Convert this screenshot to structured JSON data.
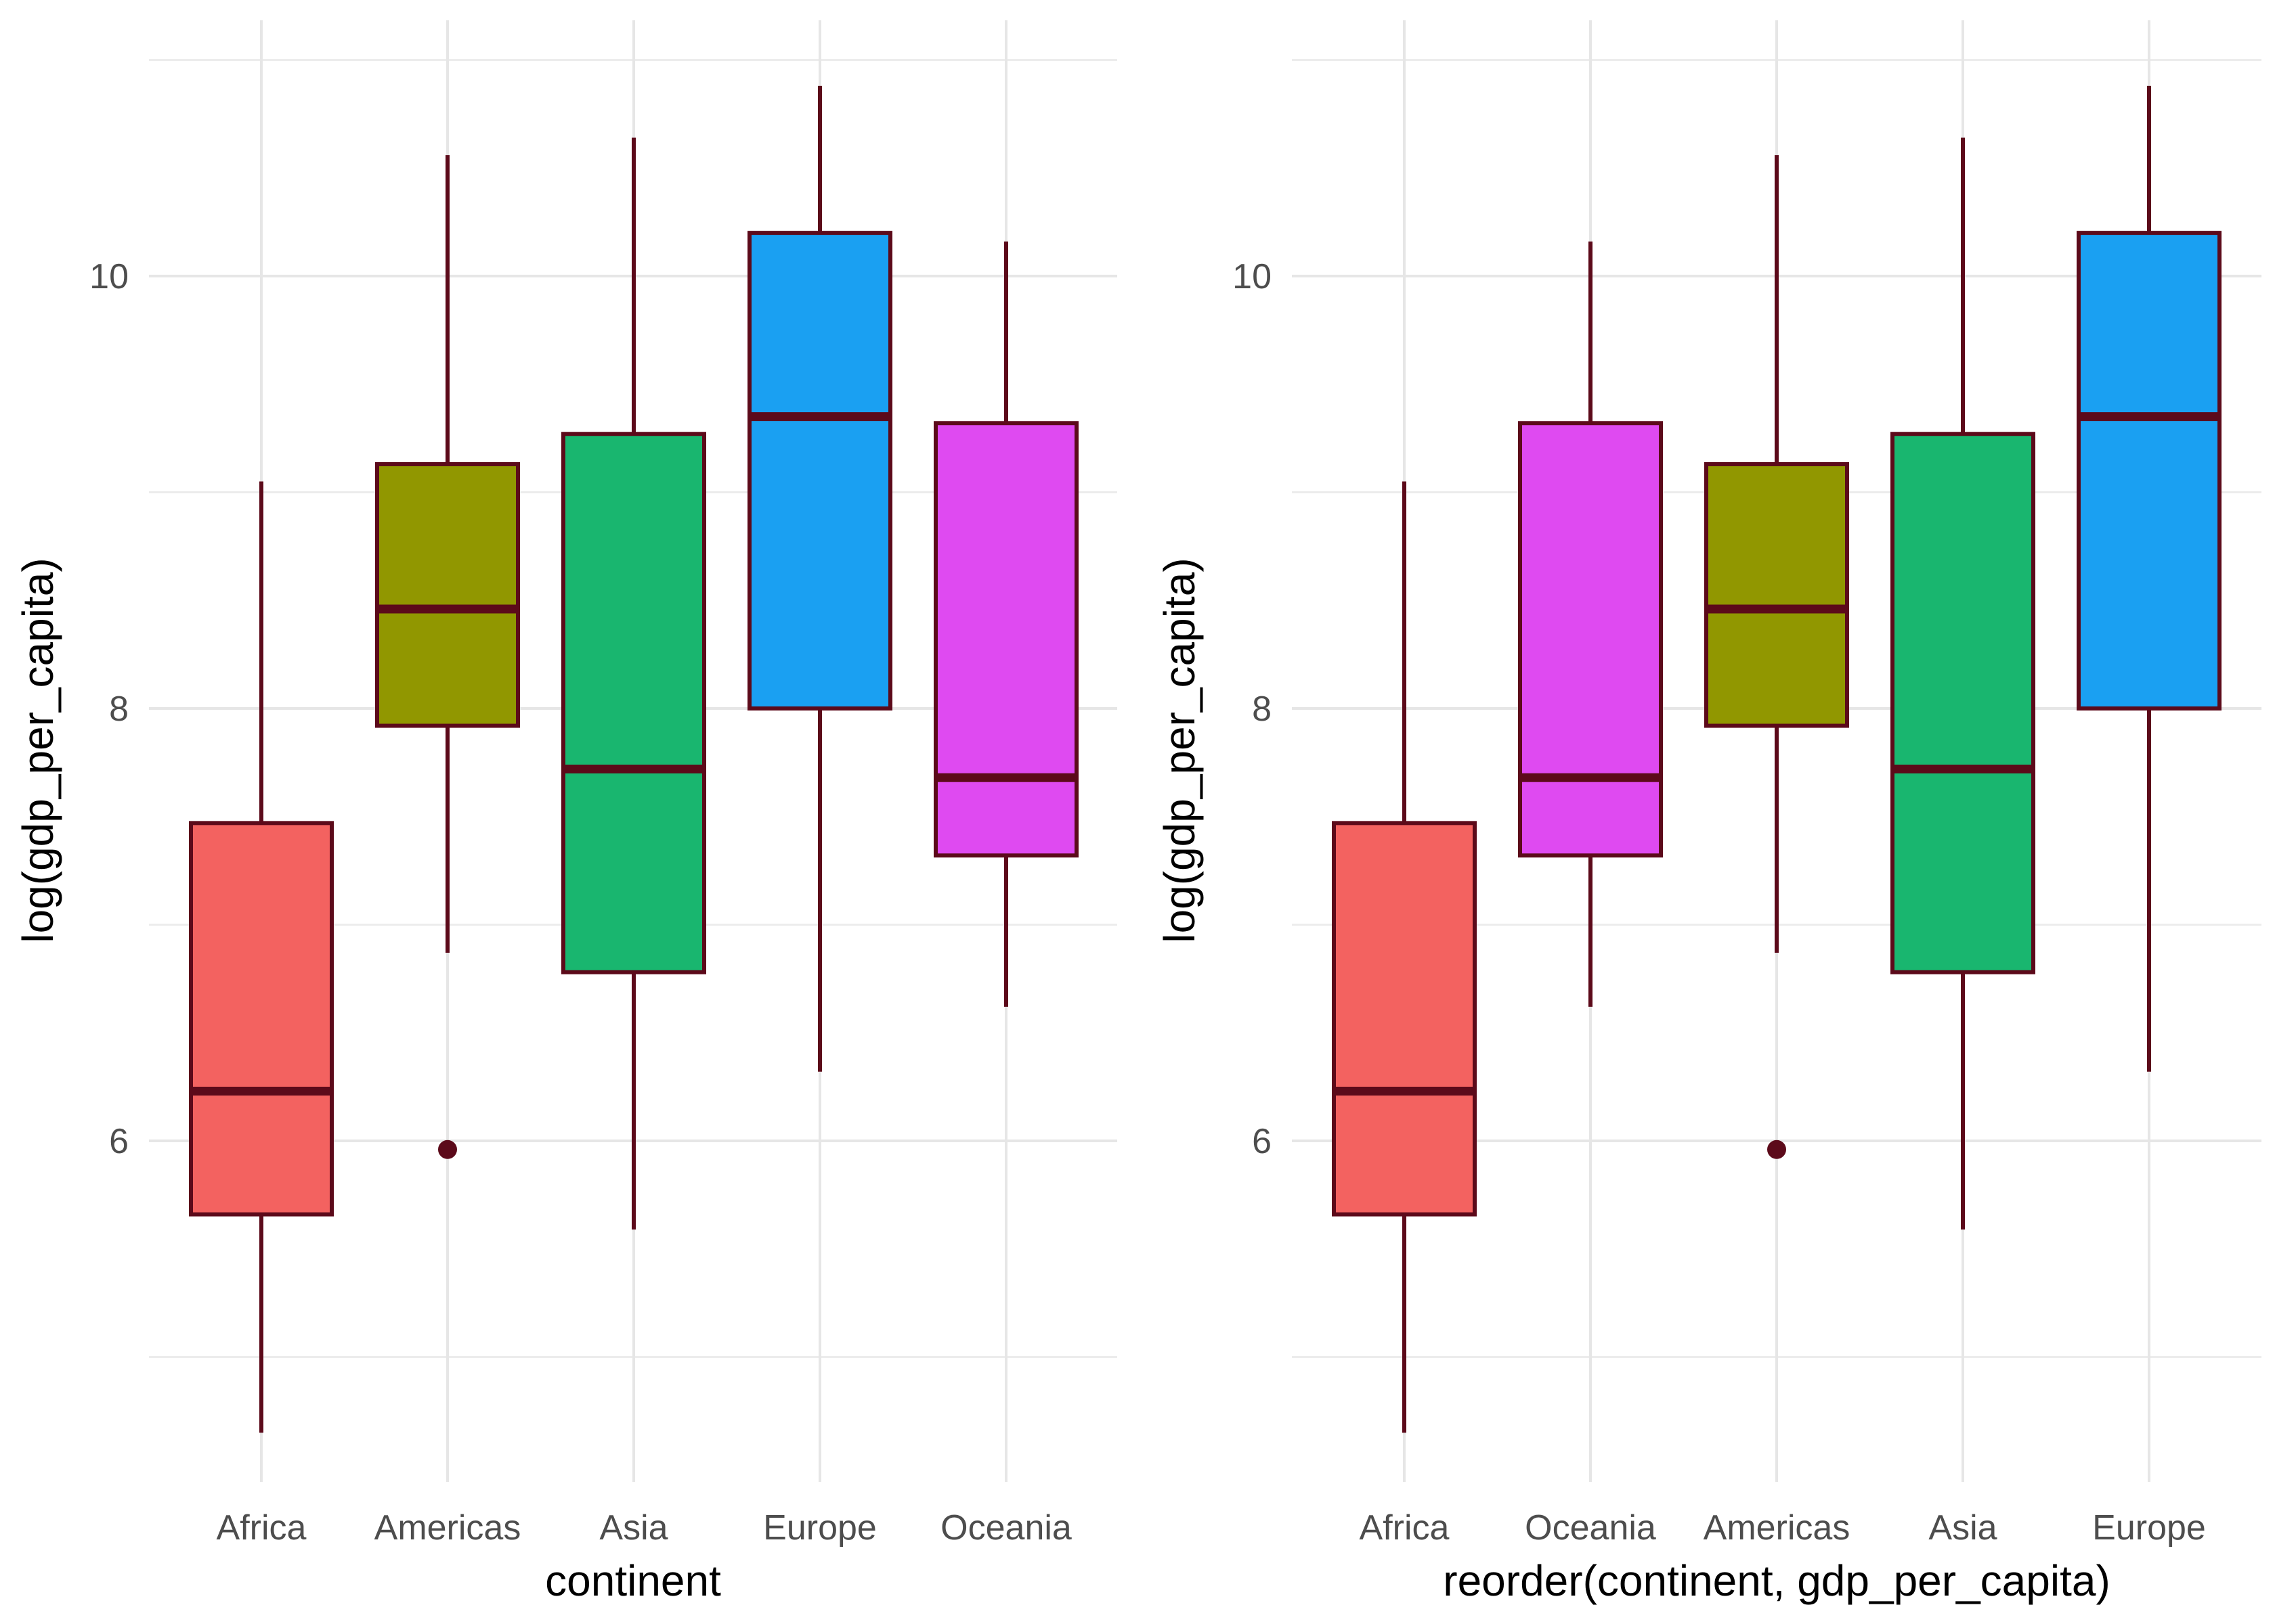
{
  "chart_data": [
    {
      "type": "boxplot",
      "xlabel": "continent",
      "ylabel": "log(gdp_per_capita)",
      "ylim": [
        4.4,
        11.2
      ],
      "yticks": [
        6,
        8,
        10
      ],
      "grid": "on",
      "legend": "none",
      "categories": [
        "Africa",
        "Americas",
        "Asia",
        "Europe",
        "Oceania"
      ],
      "boxes": [
        {
          "category": "Africa",
          "fill": "#F36260",
          "whisker_low": 4.65,
          "q1": 5.66,
          "median": 6.23,
          "q3": 7.47,
          "whisker_high": 9.05,
          "outliers": []
        },
        {
          "category": "Americas",
          "fill": "#919700",
          "whisker_low": 6.87,
          "q1": 7.92,
          "median": 8.46,
          "q3": 9.13,
          "whisker_high": 10.56,
          "outliers": [
            5.96
          ]
        },
        {
          "category": "Asia",
          "fill": "#19B66F",
          "whisker_low": 5.59,
          "q1": 6.78,
          "median": 7.72,
          "q3": 9.27,
          "whisker_high": 10.64,
          "outliers": []
        },
        {
          "category": "Europe",
          "fill": "#1AA0F2",
          "whisker_low": 6.32,
          "q1": 8.0,
          "median": 9.35,
          "q3": 10.2,
          "whisker_high": 10.88,
          "outliers": []
        },
        {
          "category": "Oceania",
          "fill": "#DF4AF1",
          "whisker_low": 6.62,
          "q1": 7.32,
          "median": 7.68,
          "q3": 9.32,
          "whisker_high": 10.16,
          "outliers": []
        }
      ]
    },
    {
      "type": "boxplot",
      "xlabel": "reorder(continent, gdp_per_capita)",
      "ylabel": "log(gdp_per_capita)",
      "ylim": [
        4.4,
        11.2
      ],
      "yticks": [
        6,
        8,
        10
      ],
      "grid": "on",
      "legend": "none",
      "categories": [
        "Africa",
        "Oceania",
        "Americas",
        "Asia",
        "Europe"
      ],
      "boxes": [
        {
          "category": "Africa",
          "fill": "#F36260",
          "whisker_low": 4.65,
          "q1": 5.66,
          "median": 6.23,
          "q3": 7.47,
          "whisker_high": 9.05,
          "outliers": []
        },
        {
          "category": "Oceania",
          "fill": "#DF4AF1",
          "whisker_low": 6.62,
          "q1": 7.32,
          "median": 7.68,
          "q3": 9.32,
          "whisker_high": 10.16,
          "outliers": []
        },
        {
          "category": "Americas",
          "fill": "#919700",
          "whisker_low": 6.87,
          "q1": 7.92,
          "median": 8.46,
          "q3": 9.13,
          "whisker_high": 10.56,
          "outliers": [
            5.96
          ]
        },
        {
          "category": "Asia",
          "fill": "#19B66F",
          "whisker_low": 5.59,
          "q1": 6.78,
          "median": 7.72,
          "q3": 9.27,
          "whisker_high": 10.64,
          "outliers": []
        },
        {
          "category": "Europe",
          "fill": "#1AA0F2",
          "whisker_low": 6.32,
          "q1": 8.0,
          "median": 9.35,
          "q3": 10.2,
          "whisker_high": 10.88,
          "outliers": []
        }
      ]
    }
  ],
  "style": {
    "outline_color": "#5C0A1A",
    "median_color": "#5C0A1A",
    "grid_color": "#E6E6E6"
  }
}
